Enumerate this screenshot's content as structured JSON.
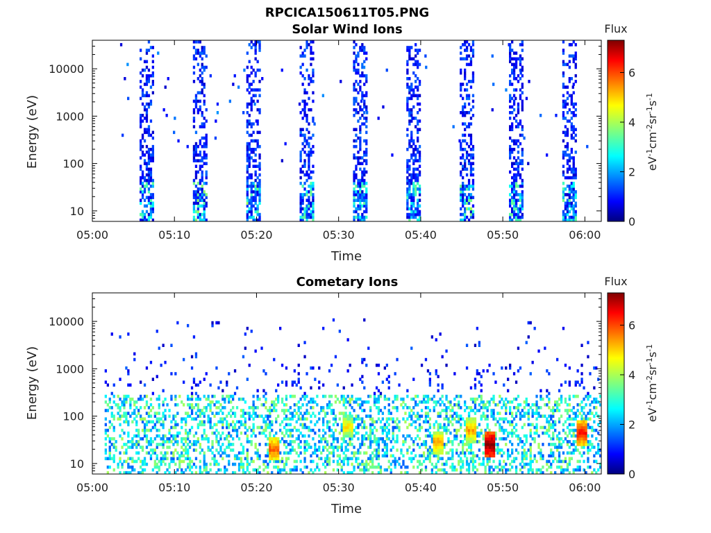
{
  "figure_title": "RPCICA150611T05.PNG",
  "colorbar": {
    "title": "Flux",
    "label": "eV-1cm-2sr-1s-1",
    "ticks": [
      "0",
      "2",
      "4",
      "6"
    ],
    "range": [
      0,
      7.3
    ],
    "colormap": "jet"
  },
  "chart_data": [
    {
      "type": "heatmap",
      "title": "Solar Wind Ions",
      "xlabel": "Time",
      "ylabel": "Energy (eV)",
      "x_tick_labels": [
        "05:00",
        "05:10",
        "05:20",
        "05:30",
        "05:40",
        "05:50",
        "06:00"
      ],
      "x_range": [
        "05:00",
        "06:02"
      ],
      "y_scale": "log",
      "y_tick_labels": [
        "10",
        "100",
        "1000",
        "10000"
      ],
      "y_range": [
        6,
        40000
      ],
      "pattern": "Periodic vertical bursts spanning 10 eV to ~30000 eV, roughly every 6.3 minutes; flux mostly 0.5-2.5, occasional 3-4 at low energy",
      "bursts": [
        {
          "time": "05:06.5",
          "max_flux": 3.0
        },
        {
          "time": "05:13.0",
          "max_flux": 3.5
        },
        {
          "time": "05:19.5",
          "max_flux": 3.5
        },
        {
          "time": "05:26.0",
          "max_flux": 3.0
        },
        {
          "time": "05:32.5",
          "max_flux": 3.0
        },
        {
          "time": "05:39.0",
          "max_flux": 3.0
        },
        {
          "time": "05:45.5",
          "max_flux": 3.5
        },
        {
          "time": "05:51.5",
          "max_flux": 3.0
        },
        {
          "time": "05:58.0",
          "max_flux": 3.0
        }
      ]
    },
    {
      "type": "heatmap",
      "title": "Cometary Ions",
      "xlabel": "Time",
      "ylabel": "Energy (eV)",
      "x_tick_labels": [
        "05:00",
        "05:10",
        "05:20",
        "05:30",
        "05:40",
        "05:50",
        "06:00"
      ],
      "x_range": [
        "05:00",
        "06:02"
      ],
      "y_scale": "log",
      "y_tick_labels": [
        "10",
        "100",
        "1000",
        "10000"
      ],
      "y_range": [
        6,
        40000
      ],
      "pattern": "Continuous band between ~10 eV and ~300 eV, flux 2-5, sparse points up to 10000 eV",
      "hotspots": [
        {
          "time": "05:22",
          "energy_eV": 20,
          "flux": 5.5
        },
        {
          "time": "05:48.3",
          "energy_eV": 25,
          "flux": 7.0
        },
        {
          "time": "05:59.5",
          "energy_eV": 45,
          "flux": 6.0
        },
        {
          "time": "05:42",
          "energy_eV": 28,
          "flux": 5.0
        },
        {
          "time": "05:46",
          "energy_eV": 50,
          "flux": 5.0
        },
        {
          "time": "05:31",
          "energy_eV": 60,
          "flux": 4.5
        }
      ]
    }
  ]
}
